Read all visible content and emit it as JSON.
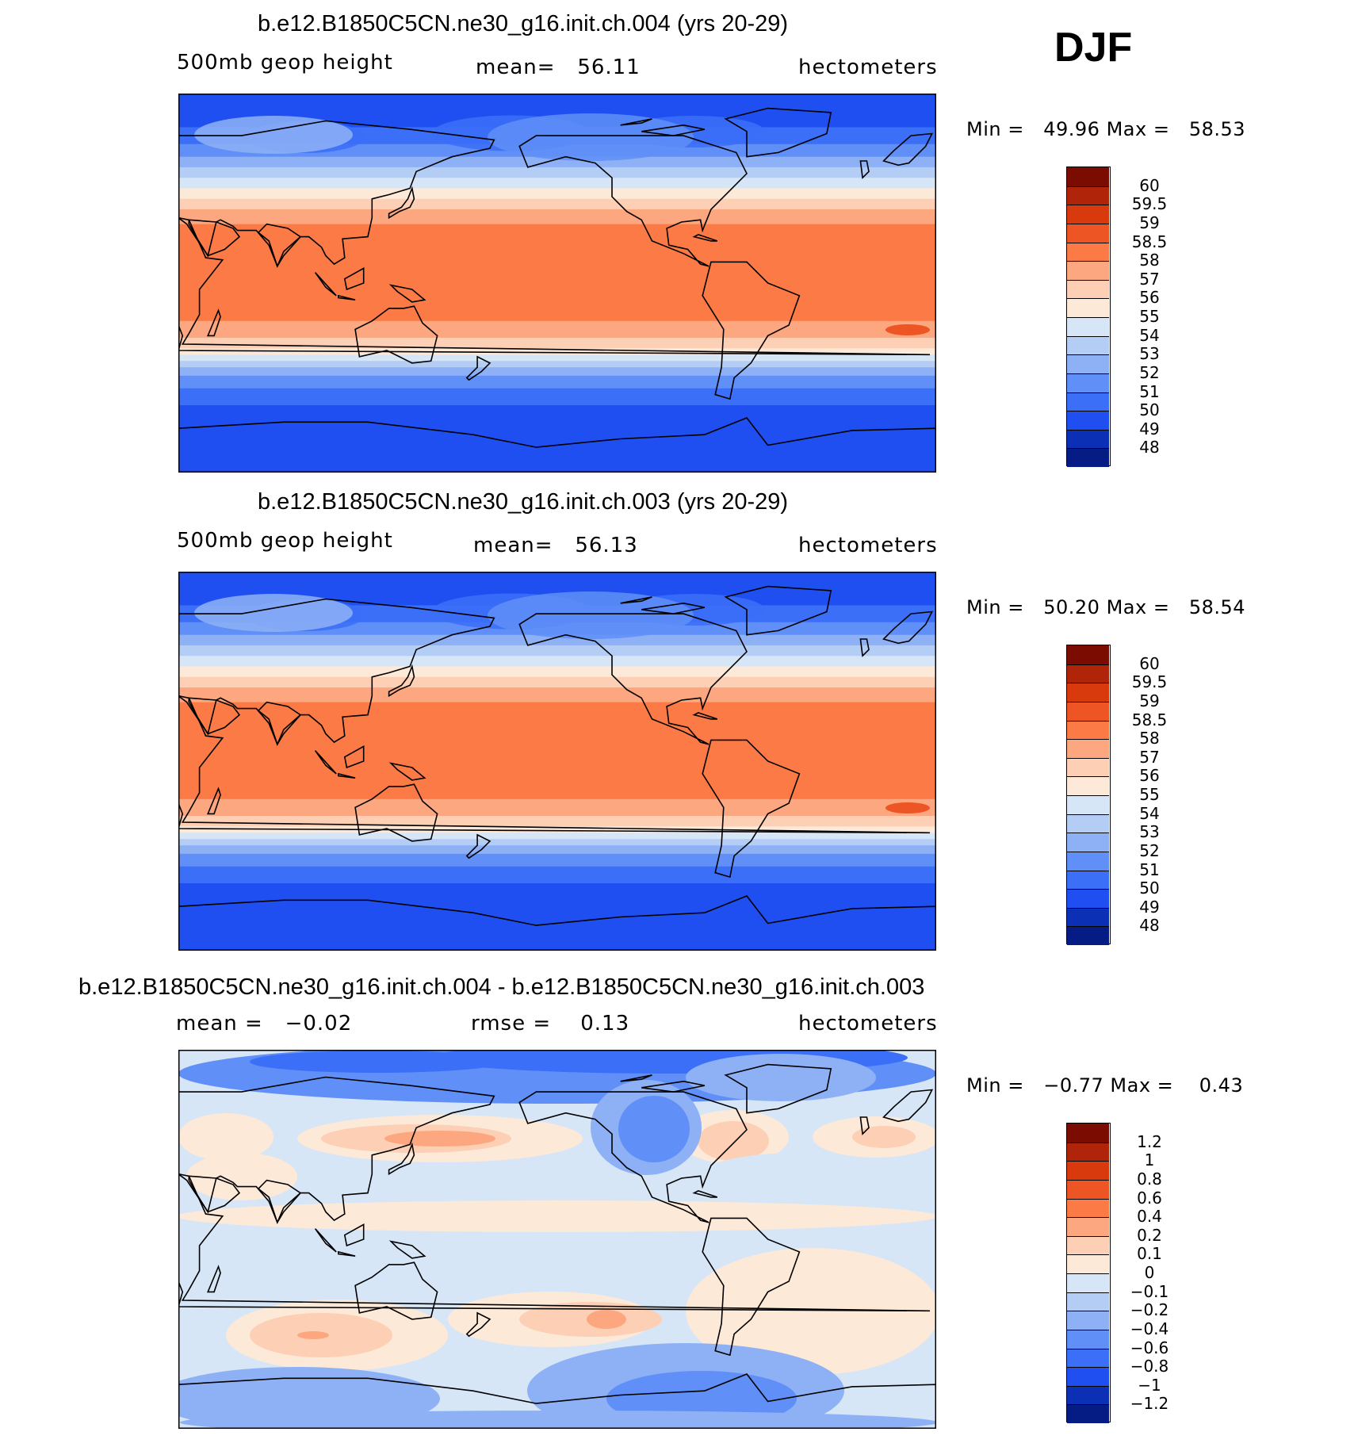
{
  "season": "DJF",
  "panels": [
    {
      "title": "b.e12.B1850C5CN.ne30_g16.init.ch.004 (yrs 20-29)",
      "left_label": "500mb geop height",
      "mean_label": "mean=",
      "mean_value": "56.11",
      "units": "hectometers",
      "min_label": "Min =",
      "min_value": "49.96",
      "max_label": "Max =",
      "max_value": "58.53",
      "colorbar_labels": [
        "60",
        "59.5",
        "59",
        "58.5",
        "58",
        "57",
        "56",
        "55",
        "54",
        "53",
        "52",
        "51",
        "50",
        "49",
        "48"
      ]
    },
    {
      "title": "b.e12.B1850C5CN.ne30_g16.init.ch.003 (yrs 20-29)",
      "left_label": "500mb geop height",
      "mean_label": "mean=",
      "mean_value": "56.13",
      "units": "hectometers",
      "min_label": "Min =",
      "min_value": "50.20",
      "max_label": "Max =",
      "max_value": "58.54",
      "colorbar_labels": [
        "60",
        "59.5",
        "59",
        "58.5",
        "58",
        "57",
        "56",
        "55",
        "54",
        "53",
        "52",
        "51",
        "50",
        "49",
        "48"
      ]
    },
    {
      "title": "b.e12.B1850C5CN.ne30_g16.init.ch.004 - b.e12.B1850C5CN.ne30_g16.init.ch.003",
      "left_label": "mean =",
      "left_value": "−0.02",
      "mean_label": "rmse =",
      "mean_value": "0.13",
      "units": "hectometers",
      "min_label": "Min =",
      "min_value": "−0.77",
      "max_label": "Max =",
      "max_value": "0.43",
      "colorbar_labels": [
        "1.2",
        "1",
        "0.8",
        "0.6",
        "0.4",
        "0.2",
        "0.1",
        "0",
        "−0.1",
        "−0.2",
        "−0.4",
        "−0.6",
        "−0.8",
        "−1",
        "−1.2"
      ]
    }
  ],
  "colors": {
    "colorbar": [
      "#7a0c02",
      "#b0240a",
      "#d83a0e",
      "#ee5524",
      "#fb7a45",
      "#fca780",
      "#fdcfb4",
      "#fde9d8",
      "#d6e6f7",
      "#b3cdf5",
      "#8eb1f6",
      "#5f8ff7",
      "#3b6ff8",
      "#1f4ff0",
      "#0b2fb5",
      "#061c85"
    ],
    "land_outline": "#000000"
  },
  "chart_data": [
    {
      "type": "heatmap",
      "title": "b.e12.B1850C5CN.ne30_g16.init.ch.004 (yrs 20-29)",
      "variable": "500mb geop height",
      "units": "hectometers",
      "mean": 56.11,
      "min": 49.96,
      "max": 58.53,
      "contour_levels": [
        48,
        49,
        50,
        51,
        52,
        53,
        54,
        55,
        56,
        57,
        58,
        58.5,
        59,
        59.5,
        60
      ],
      "latitude_profile": {
        "lat": [
          90,
          70,
          60,
          50,
          40,
          30,
          20,
          0,
          -20,
          -30,
          -40,
          -50,
          -60,
          -70,
          -90
        ],
        "value": [
          51.0,
          51.5,
          52.5,
          54.0,
          55.5,
          57.0,
          58.0,
          58.2,
          58.0,
          57.0,
          55.5,
          53.5,
          51.5,
          50.5,
          50.0
        ]
      }
    },
    {
      "type": "heatmap",
      "title": "b.e12.B1850C5CN.ne30_g16.init.ch.003 (yrs 20-29)",
      "variable": "500mb geop height",
      "units": "hectometers",
      "mean": 56.13,
      "min": 50.2,
      "max": 58.54,
      "contour_levels": [
        48,
        49,
        50,
        51,
        52,
        53,
        54,
        55,
        56,
        57,
        58,
        58.5,
        59,
        59.5,
        60
      ],
      "latitude_profile": {
        "lat": [
          90,
          70,
          60,
          50,
          40,
          30,
          20,
          0,
          -20,
          -30,
          -40,
          -50,
          -60,
          -70,
          -90
        ],
        "value": [
          51.0,
          51.5,
          52.5,
          54.0,
          55.5,
          57.0,
          58.0,
          58.2,
          58.0,
          57.0,
          55.5,
          53.5,
          51.5,
          50.5,
          50.0
        ]
      }
    },
    {
      "type": "heatmap",
      "title": "b.e12.B1850C5CN.ne30_g16.init.ch.004 - b.e12.B1850C5CN.ne30_g16.init.ch.003",
      "units": "hectometers",
      "mean": -0.02,
      "rmse": 0.13,
      "min": -0.77,
      "max": 0.43,
      "contour_levels": [
        -1.2,
        -1,
        -0.8,
        -0.6,
        -0.4,
        -0.2,
        -0.1,
        0,
        0.1,
        0.2,
        0.4,
        0.6,
        0.8,
        1,
        1.2
      ]
    }
  ]
}
